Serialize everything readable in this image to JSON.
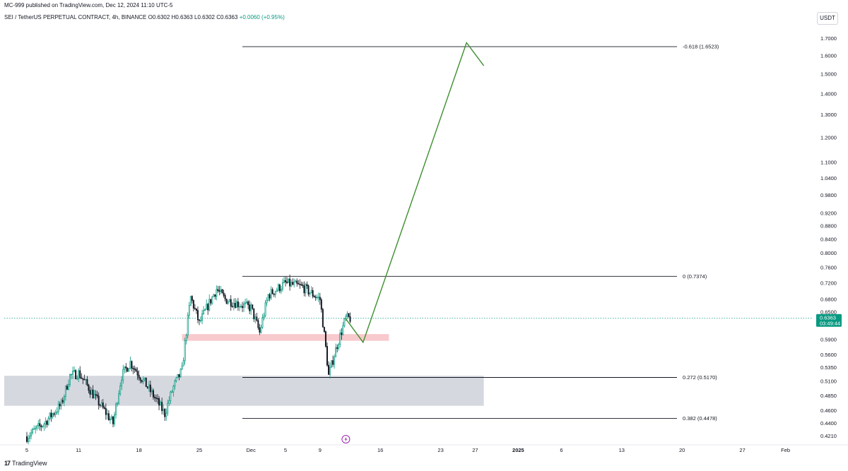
{
  "header": {
    "publisher": "MC-999 published on TradingView.com, Dec 12, 2024 11:10 UTC-5",
    "symbol": "SEI / TetherUS PERPETUAL CONTRACT, 4h, BINANCE",
    "o": "O0.6302",
    "h": "H0.6363",
    "l": "L0.6302",
    "c": "C0.6363",
    "change": "+0.0060 (+0.95%)"
  },
  "currency_button": "USDT",
  "footer": {
    "logo_mark": "17",
    "logo_text": "TradingView"
  },
  "colors": {
    "up": "#089981",
    "down": "#131722",
    "candle_fill_up": "#ffffff",
    "projection": "#3d8f2f",
    "fib_line": "#131722",
    "zone_red": "#f7c1c4",
    "zone_gray": "#d1d4dc",
    "price_tag": "#089981",
    "price_dotted": "#089981",
    "icon_purple": "#9c27b0"
  },
  "chart_data": {
    "type": "candlestick",
    "timeframe": "4h",
    "y_scale": "log",
    "ylim": [
      0.41,
      1.78
    ],
    "y_ticks": [
      "1.7000",
      "1.6000",
      "1.5000",
      "1.4000",
      "1.3000",
      "1.2000",
      "1.1000",
      "1.0400",
      "0.9800",
      "0.9200",
      "0.8800",
      "0.8400",
      "0.8000",
      "0.7600",
      "0.7200",
      "0.6800",
      "0.6500",
      "0.5900",
      "0.5600",
      "0.5350",
      "0.5100",
      "0.4850",
      "0.4600",
      "0.4400",
      "0.4210"
    ],
    "x_ticks": [
      {
        "label": "5",
        "date": "2024-11-05"
      },
      {
        "label": "11",
        "date": "2024-11-11"
      },
      {
        "label": "18",
        "date": "2024-11-18"
      },
      {
        "label": "25",
        "date": "2024-11-25"
      },
      {
        "label": "Dec",
        "date": "2024-12-01"
      },
      {
        "label": "5",
        "date": "2024-12-05"
      },
      {
        "label": "9",
        "date": "2024-12-09"
      },
      {
        "label": "16",
        "date": "2024-12-16"
      },
      {
        "label": "23",
        "date": "2024-12-23"
      },
      {
        "label": "27",
        "date": "2024-12-27"
      },
      {
        "label": "2025",
        "date": "2025-01-01"
      },
      {
        "label": "6",
        "date": "2025-01-06"
      },
      {
        "label": "13",
        "date": "2025-01-13"
      },
      {
        "label": "20",
        "date": "2025-01-20"
      },
      {
        "label": "27",
        "date": "2025-01-27"
      },
      {
        "label": "Feb",
        "date": "2025-02-01"
      }
    ],
    "price_anchors": [
      {
        "date": "2024-11-05",
        "price": 0.42
      },
      {
        "date": "2024-11-07",
        "price": 0.44
      },
      {
        "date": "2024-11-09",
        "price": 0.47
      },
      {
        "date": "2024-11-10",
        "price": 0.52
      },
      {
        "date": "2024-11-11",
        "price": 0.525
      },
      {
        "date": "2024-11-13",
        "price": 0.48
      },
      {
        "date": "2024-11-15",
        "price": 0.44
      },
      {
        "date": "2024-11-16",
        "price": 0.52
      },
      {
        "date": "2024-11-17",
        "price": 0.545
      },
      {
        "date": "2024-11-19",
        "price": 0.5
      },
      {
        "date": "2024-11-21",
        "price": 0.455
      },
      {
        "date": "2024-11-22",
        "price": 0.5
      },
      {
        "date": "2024-11-23",
        "price": 0.53
      },
      {
        "date": "2024-11-24",
        "price": 0.685
      },
      {
        "date": "2024-11-25",
        "price": 0.625
      },
      {
        "date": "2024-11-27",
        "price": 0.705
      },
      {
        "date": "2024-11-28",
        "price": 0.68
      },
      {
        "date": "2024-12-01",
        "price": 0.66
      },
      {
        "date": "2024-12-02",
        "price": 0.605
      },
      {
        "date": "2024-12-03",
        "price": 0.69
      },
      {
        "date": "2024-12-05",
        "price": 0.72
      },
      {
        "date": "2024-12-07",
        "price": 0.71
      },
      {
        "date": "2024-12-09",
        "price": 0.68
      },
      {
        "date": "2024-12-10",
        "price": 0.52
      },
      {
        "date": "2024-12-11",
        "price": 0.58
      },
      {
        "date": "2024-12-12",
        "price": 0.6363
      }
    ],
    "last_price": "0.6363",
    "countdown": "03:49:44",
    "fib_levels": [
      {
        "label": "-0.618 (1.6523)",
        "price": 1.6523,
        "from": "2024-11-30",
        "to": "2025-01-27"
      },
      {
        "label": "0 (0.7374)",
        "price": 0.7374,
        "from": "2024-11-30",
        "to": "2025-01-27"
      },
      {
        "label": "0.272 (0.5170)",
        "price": 0.517,
        "from": "2024-11-30",
        "to": "2025-01-27"
      },
      {
        "label": "0.382 (0.4478)",
        "price": 0.4478,
        "from": "2024-11-30",
        "to": "2025-01-27"
      }
    ],
    "zones": [
      {
        "name": "supply-demand-red",
        "from": "2024-11-23",
        "to": "2024-12-17",
        "low": 0.588,
        "high": 0.602
      },
      {
        "name": "demand-gray",
        "from": "2024-11-01",
        "to": "2024-12-28",
        "low": 0.468,
        "high": 0.52
      }
    ],
    "projection_path": [
      {
        "date": "2024-12-12",
        "price": 0.635
      },
      {
        "date": "2024-12-14",
        "price": 0.585
      },
      {
        "date": "2024-12-26",
        "price": 1.675
      },
      {
        "date": "2024-12-28",
        "price": 1.545
      }
    ]
  }
}
